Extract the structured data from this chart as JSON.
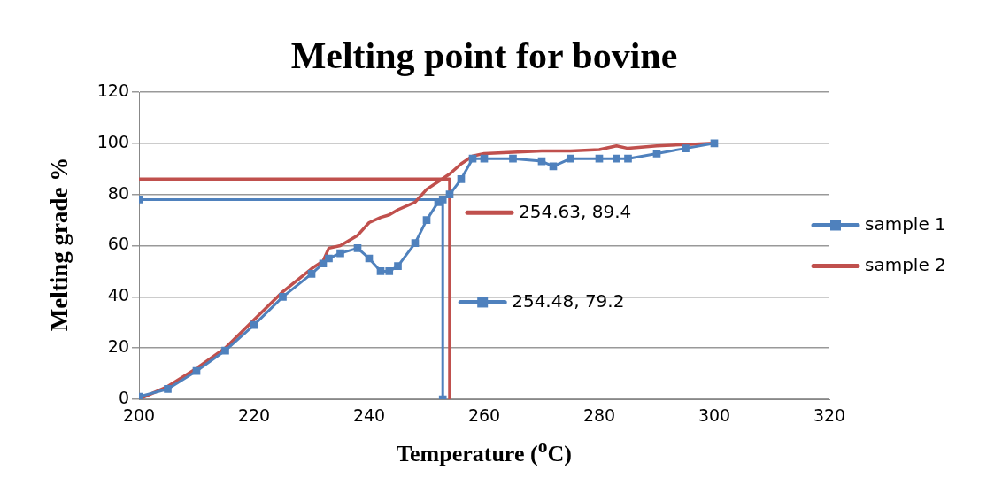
{
  "chart_data": {
    "type": "line",
    "title": "Melting point for bovine",
    "xlabel": "Temperature ($^{o}$C)",
    "ylabel": "Melting grade %",
    "x": [
      200,
      205,
      210,
      215,
      220,
      225,
      230,
      232,
      233,
      235,
      238,
      240,
      242,
      243.5,
      245,
      248,
      250,
      252,
      254,
      256,
      258,
      260,
      265,
      270,
      272,
      275,
      280,
      283,
      285,
      290,
      295,
      300
    ],
    "series": [
      {
        "name": "sample 1",
        "color": "#4f81bd",
        "marker": "square",
        "values": [
          1,
          4,
          11,
          19,
          29,
          40,
          49,
          53,
          55,
          57,
          59,
          55,
          50,
          50,
          52,
          61,
          70,
          77,
          80,
          86,
          94,
          94,
          94,
          93,
          91,
          94,
          94,
          94,
          94,
          96,
          98,
          100
        ]
      },
      {
        "name": "sample 2",
        "color": "#c0504d",
        "values": [
          0,
          5,
          12,
          20,
          31,
          42,
          51,
          54,
          59,
          60,
          64,
          69,
          71,
          72,
          74,
          77,
          82,
          85,
          88,
          92,
          95,
          96,
          96.5,
          97,
          97,
          97,
          97.5,
          99,
          98,
          99,
          99.5,
          100
        ]
      },
      {
        "name": "254.63, 89.4",
        "color": "#c0504d",
        "x": [
          200,
          254,
          254
        ],
        "values": [
          86,
          86,
          0
        ]
      },
      {
        "name": "254.48, 79.2",
        "color": "#4f81bd",
        "marker": "square",
        "x": [
          200,
          252.8,
          252.8
        ],
        "values": [
          78,
          78,
          0
        ]
      }
    ],
    "xlim": [
      200,
      320
    ],
    "xticks": [
      200,
      220,
      240,
      260,
      280,
      300,
      320
    ],
    "ylim": [
      0,
      120
    ],
    "yticks": [
      0,
      20,
      40,
      60,
      80,
      100,
      120
    ],
    "grid": "y",
    "legend": "right"
  }
}
